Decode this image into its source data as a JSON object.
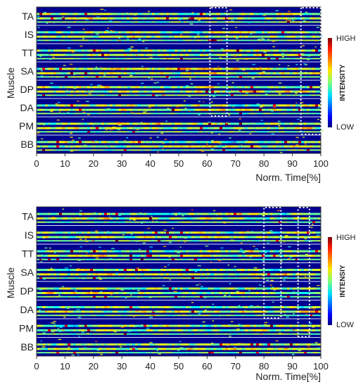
{
  "chart_data": [
    {
      "type": "heatmap",
      "xlabel": "Norm. Time[%]",
      "ylabel": "Muscle",
      "xlim": [
        0,
        100
      ],
      "xticks": [
        0,
        10,
        20,
        30,
        40,
        50,
        60,
        70,
        80,
        90,
        100
      ],
      "rows": [
        "TA",
        "IS",
        "TT",
        "SA",
        "DP",
        "DA",
        "PM",
        "BB"
      ],
      "colorbar": {
        "title": "INTENSITY",
        "high_label": "HIGH",
        "low_label": "LOW"
      },
      "highlight_windows": [
        {
          "x": [
            61,
            67
          ],
          "rows": [
            "TA",
            "DA"
          ]
        },
        {
          "x": [
            93,
            100
          ],
          "rows": [
            "TA",
            "PM"
          ]
        }
      ]
    },
    {
      "type": "heatmap",
      "xlabel": "Norm. Time[%]",
      "ylabel": "Muscle",
      "xlim": [
        0,
        100
      ],
      "xticks": [
        0,
        10,
        20,
        30,
        40,
        50,
        60,
        70,
        80,
        90,
        100
      ],
      "rows": [
        "TA",
        "IS",
        "TT",
        "SA",
        "DP",
        "DA",
        "PM",
        "BB"
      ],
      "colorbar": {
        "title": "INTENSIY",
        "high_label": "HIGH",
        "low_label": "LOW"
      },
      "highlight_windows": [
        {
          "x": [
            80,
            86
          ],
          "rows": [
            "TA",
            "DA"
          ]
        },
        {
          "x": [
            92,
            96
          ],
          "rows": [
            "TA",
            "PM"
          ]
        }
      ]
    }
  ]
}
